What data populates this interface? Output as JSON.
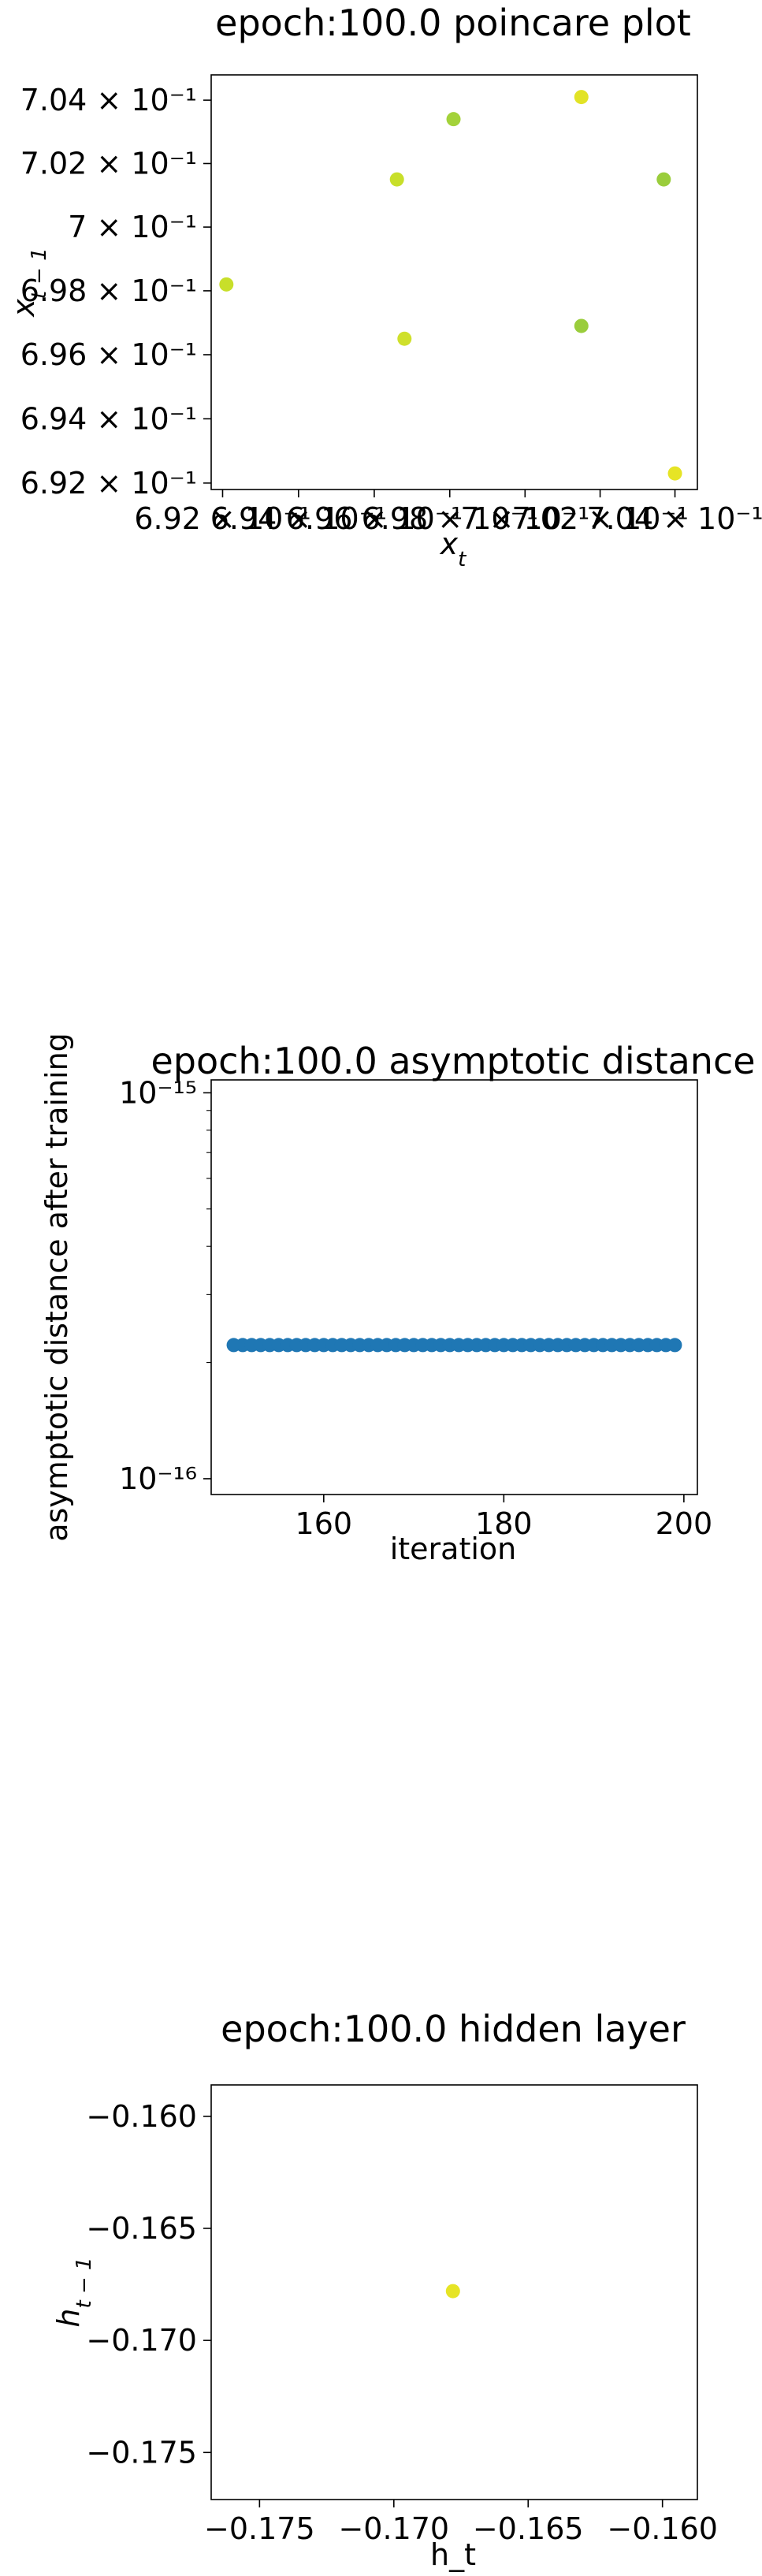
{
  "chart_data": [
    {
      "type": "scatter",
      "title": "epoch:100.0 poincare plot",
      "xlabel": "x_t",
      "ylabel": "x_{t-1}",
      "xscale": "log",
      "yscale": "log",
      "xlim": [
        0.6917,
        0.7046
      ],
      "ylim": [
        0.6918,
        0.7048
      ],
      "xticks": [
        {
          "v": 0.692,
          "label": "6.92 × 10⁻¹"
        },
        {
          "v": 0.694,
          "label": "6.94 × 10⁻¹"
        },
        {
          "v": 0.696,
          "label": "6.96 × 10⁻¹"
        },
        {
          "v": 0.698,
          "label": "6.98 × 10⁻¹"
        },
        {
          "v": 0.7,
          "label": "7 × 10⁻¹"
        },
        {
          "v": 0.702,
          "label": "7.02 × 10⁻¹"
        },
        {
          "v": 0.704,
          "label": "7.04 × 10⁻¹"
        }
      ],
      "yticks": [
        {
          "v": 0.692,
          "label": "6.92 × 10⁻¹"
        },
        {
          "v": 0.694,
          "label": "6.94 × 10⁻¹"
        },
        {
          "v": 0.696,
          "label": "6.96 × 10⁻¹"
        },
        {
          "v": 0.698,
          "label": "6.98 × 10⁻¹"
        },
        {
          "v": 0.7,
          "label": "7 × 10⁻¹"
        },
        {
          "v": 0.702,
          "label": "7.02 × 10⁻¹"
        },
        {
          "v": 0.704,
          "label": "7.04 × 10⁻¹"
        }
      ],
      "points": [
        {
          "x": 0.6921,
          "y": 0.6982,
          "color": "#c8df2a"
        },
        {
          "x": 0.6966,
          "y": 0.7015,
          "color": "#c8df2a"
        },
        {
          "x": 0.6968,
          "y": 0.6965,
          "color": "#cfe02c"
        },
        {
          "x": 0.6981,
          "y": 0.7034,
          "color": "#a3d23a"
        },
        {
          "x": 0.7015,
          "y": 0.6969,
          "color": "#9acd3c"
        },
        {
          "x": 0.7015,
          "y": 0.7041,
          "color": "#e2e326"
        },
        {
          "x": 0.7037,
          "y": 0.7015,
          "color": "#9acd3c"
        },
        {
          "x": 0.704,
          "y": 0.6923,
          "color": "#e6e425"
        }
      ],
      "grid": false
    },
    {
      "type": "scatter",
      "title": "epoch:100.0 asymptotic distance",
      "xlabel": "iteration",
      "ylabel": "asymptotic distance after training",
      "xscale": "linear",
      "yscale": "log",
      "xlim": [
        147.5,
        201.5
      ],
      "ylim": [
        9.1e-17,
        1.08e-15
      ],
      "xticks": [
        {
          "v": 160,
          "label": "160"
        },
        {
          "v": 180,
          "label": "180"
        },
        {
          "v": 200,
          "label": "200"
        }
      ],
      "yticks": [
        {
          "v": 1e-16,
          "label": "10⁻¹⁶"
        },
        {
          "v": 1e-15,
          "label": "10⁻¹⁵"
        }
      ],
      "x_range": [
        150,
        199
      ],
      "y_constant": 2.22e-16,
      "color": "#1f77b4",
      "grid": false
    },
    {
      "type": "scatter",
      "title": "epoch:100.0 hidden layer",
      "xlabel": "h_t",
      "ylabel": "h_{t-1}",
      "xscale": "linear",
      "yscale": "linear",
      "xlim": [
        -0.1768,
        -0.1587
      ],
      "ylim": [
        -0.1771,
        -0.1586
      ],
      "xticks": [
        {
          "v": -0.175,
          "label": "−0.175"
        },
        {
          "v": -0.17,
          "label": "−0.170"
        },
        {
          "v": -0.165,
          "label": "−0.165"
        },
        {
          "v": -0.16,
          "label": "−0.160"
        }
      ],
      "yticks": [
        {
          "v": -0.16,
          "label": "−0.160"
        },
        {
          "v": -0.165,
          "label": "−0.165"
        },
        {
          "v": -0.17,
          "label": "−0.170"
        },
        {
          "v": -0.175,
          "label": "−0.175"
        }
      ],
      "points": [
        {
          "x": -0.1678,
          "y": -0.1678,
          "color": "#e6e425"
        }
      ],
      "grid": false
    }
  ]
}
